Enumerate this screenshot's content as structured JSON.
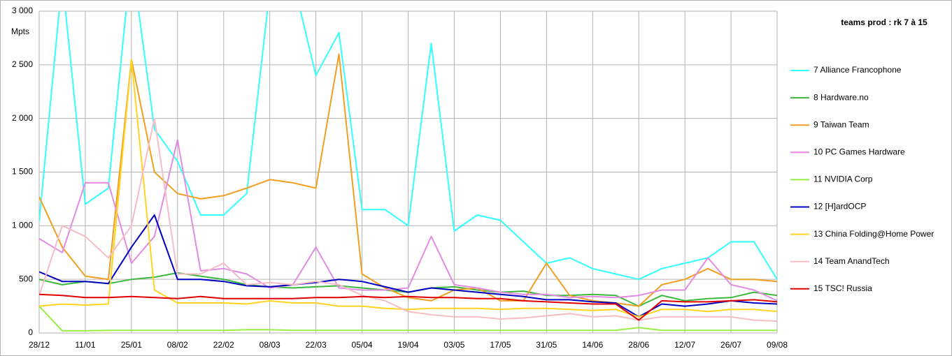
{
  "chart_data": {
    "type": "line",
    "title": "teams prod : rk 7 à 15",
    "y_label": "Mpts",
    "categories": [
      "28/12",
      null,
      "11/01",
      null,
      "25/01",
      null,
      "08/02",
      null,
      "22/02",
      null,
      "08/03",
      null,
      "22/03",
      null,
      "05/04",
      null,
      "19/04",
      null,
      "03/05",
      null,
      "17/05",
      null,
      "31/05",
      null,
      "14/06",
      null,
      "28/06",
      null,
      "12/07",
      null,
      "26/07",
      null,
      "09/08"
    ],
    "ylim": [
      0,
      3000
    ],
    "yticks": [
      {
        "value": 0,
        "label": "0"
      },
      {
        "value": 500,
        "label": "500"
      },
      {
        "value": 1000,
        "label": "1 000"
      },
      {
        "value": 1500,
        "label": "1 500"
      },
      {
        "value": 2000,
        "label": "2 000"
      },
      {
        "value": 2500,
        "label": "2 500"
      },
      {
        "value": 3000,
        "label": "3 000"
      }
    ],
    "grid": true,
    "legend": "right",
    "series": [
      {
        "name": "7 Alliance Francophone",
        "color": "#33ffff",
        "values": [
          1040,
          3300,
          1200,
          1350,
          3500,
          1900,
          1600,
          1100,
          1100,
          1300,
          3200,
          3300,
          2400,
          2800,
          1150,
          1150,
          1000,
          2700,
          950,
          1100,
          1050,
          850,
          650,
          700,
          600,
          550,
          500,
          600,
          650,
          700,
          850,
          850,
          500
        ]
      },
      {
        "name": "8 Hardware.no",
        "color": "#3cb93c",
        "values": [
          500,
          450,
          480,
          460,
          500,
          520,
          560,
          530,
          500,
          450,
          430,
          420,
          430,
          440,
          420,
          400,
          380,
          420,
          430,
          400,
          380,
          390,
          350,
          350,
          360,
          350,
          250,
          350,
          300,
          320,
          330,
          380,
          350
        ]
      },
      {
        "name": "9 Taiwan Team",
        "color": "#f0a020",
        "values": [
          1270,
          800,
          530,
          500,
          2550,
          1500,
          1300,
          1250,
          1280,
          1350,
          1430,
          1400,
          1350,
          2600,
          550,
          420,
          330,
          300,
          400,
          420,
          300,
          300,
          650,
          350,
          300,
          280,
          250,
          450,
          500,
          600,
          500,
          500,
          480
        ]
      },
      {
        "name": "10 PC Games Hardware",
        "color": "#e38be3",
        "values": [
          880,
          750,
          1400,
          1400,
          650,
          900,
          1800,
          580,
          600,
          550,
          420,
          450,
          800,
          420,
          400,
          400,
          420,
          900,
          450,
          420,
          380,
          360,
          360,
          330,
          340,
          330,
          350,
          400,
          400,
          700,
          450,
          400,
          300
        ]
      },
      {
        "name": "11 NVIDIA Corp",
        "color": "#99ee44",
        "values": [
          250,
          20,
          20,
          25,
          25,
          25,
          25,
          25,
          25,
          30,
          30,
          25,
          25,
          25,
          25,
          25,
          25,
          25,
          25,
          25,
          25,
          25,
          25,
          25,
          25,
          25,
          50,
          25,
          25,
          25,
          25,
          25,
          25
        ]
      },
      {
        "name": "12 [H]ardOCP",
        "color": "#0000c0",
        "values": [
          570,
          480,
          480,
          460,
          800,
          1100,
          500,
          500,
          480,
          440,
          430,
          450,
          470,
          500,
          480,
          430,
          380,
          420,
          400,
          380,
          360,
          340,
          310,
          310,
          290,
          280,
          150,
          270,
          250,
          270,
          300,
          280,
          270
        ]
      },
      {
        "name": "13 China Folding@Home Power",
        "color": "#ffd320",
        "values": [
          250,
          270,
          260,
          270,
          2550,
          400,
          280,
          280,
          280,
          270,
          300,
          280,
          280,
          250,
          250,
          230,
          220,
          230,
          230,
          230,
          220,
          230,
          230,
          220,
          210,
          220,
          150,
          220,
          220,
          200,
          220,
          220,
          200
        ]
      },
      {
        "name": "14 Team AnandTech",
        "color": "#f7bcc6",
        "values": [
          350,
          1000,
          900,
          700,
          1000,
          2000,
          550,
          550,
          650,
          450,
          470,
          450,
          480,
          450,
          350,
          300,
          200,
          170,
          150,
          150,
          130,
          140,
          160,
          180,
          150,
          160,
          120,
          150,
          150,
          150,
          150,
          120,
          110
        ]
      },
      {
        "name": "15 TSC! Russia",
        "color": "#e00000",
        "values": [
          360,
          350,
          330,
          330,
          340,
          330,
          320,
          340,
          320,
          320,
          320,
          320,
          330,
          330,
          340,
          330,
          340,
          330,
          330,
          320,
          320,
          300,
          290,
          280,
          270,
          270,
          120,
          300,
          290,
          290,
          300,
          310,
          290
        ]
      }
    ]
  }
}
